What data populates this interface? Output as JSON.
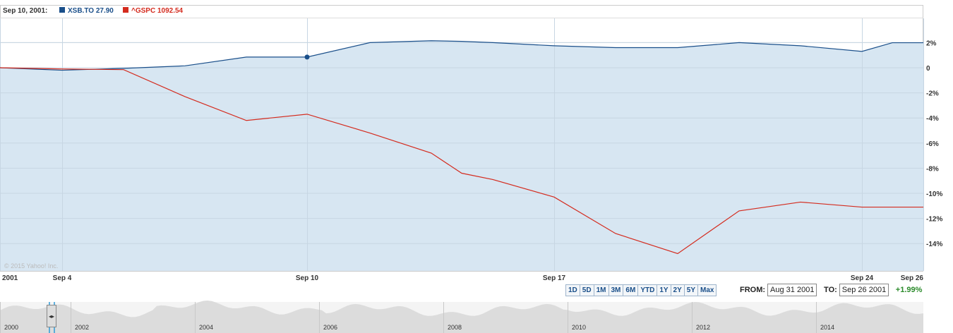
{
  "legend": {
    "date": "Sep 10, 2001:",
    "series1_label": "XSB.TO 27.90",
    "series2_label": "^GSPC 1092.54",
    "series1_color": "#1a4f8a",
    "series2_color": "#d42b1e"
  },
  "copyright": "© 2015 Yahoo! Inc.",
  "range_buttons": [
    "1D",
    "5D",
    "1M",
    "3M",
    "6M",
    "YTD",
    "1Y",
    "2Y",
    "5Y",
    "Max"
  ],
  "from_label": "FROM:",
  "from_value": "Aug 31 2001",
  "to_label": "TO:",
  "to_value": "Sep 26 2001",
  "change": "+1.99%",
  "chart_data": {
    "type": "line",
    "x_ticks": [
      "2001",
      "Sep 4",
      "Sep 10",
      "Sep 17",
      "Sep 24",
      "Sep 26"
    ],
    "y_ticks": [
      "2%",
      "0",
      "-2%",
      "-4%",
      "-6%",
      "-8%",
      "-10%",
      "-12%",
      "-14%"
    ],
    "ylim": [
      -16,
      4
    ],
    "grid": true,
    "x": [
      "Aug 31",
      "Sep 4",
      "Sep 5",
      "Sep 6",
      "Sep 7",
      "Sep 10",
      "Sep 11",
      "Sep 12",
      "Sep 13",
      "Sep 14",
      "Sep 17",
      "Sep 18",
      "Sep 19",
      "Sep 20",
      "Sep 21",
      "Sep 24",
      "Sep 25",
      "Sep 26"
    ],
    "series": [
      {
        "name": "XSB.TO",
        "color": "#1a4f8a",
        "fill": true,
        "values": [
          0,
          -0.2,
          -0.05,
          0.15,
          0.85,
          0.85,
          2.0,
          2.15,
          2.1,
          2.0,
          1.75,
          1.6,
          1.6,
          2.0,
          1.75,
          1.3,
          1.99,
          1.99
        ]
      },
      {
        "name": "^GSPC",
        "color": "#d42b1e",
        "fill": false,
        "values": [
          0,
          -0.1,
          -0.15,
          -2.3,
          -4.2,
          -3.7,
          -5.2,
          -6.8,
          -8.4,
          -8.9,
          -10.3,
          -13.2,
          -14.8,
          -11.4,
          -10.7,
          -11.1,
          -11.1,
          -11.1
        ]
      }
    ],
    "highlight_point": {
      "x": "Sep 10",
      "y": 0.85
    },
    "overview_ticks": [
      "2000",
      "2002",
      "2004",
      "2006",
      "2008",
      "2010",
      "2012",
      "2014"
    ]
  }
}
